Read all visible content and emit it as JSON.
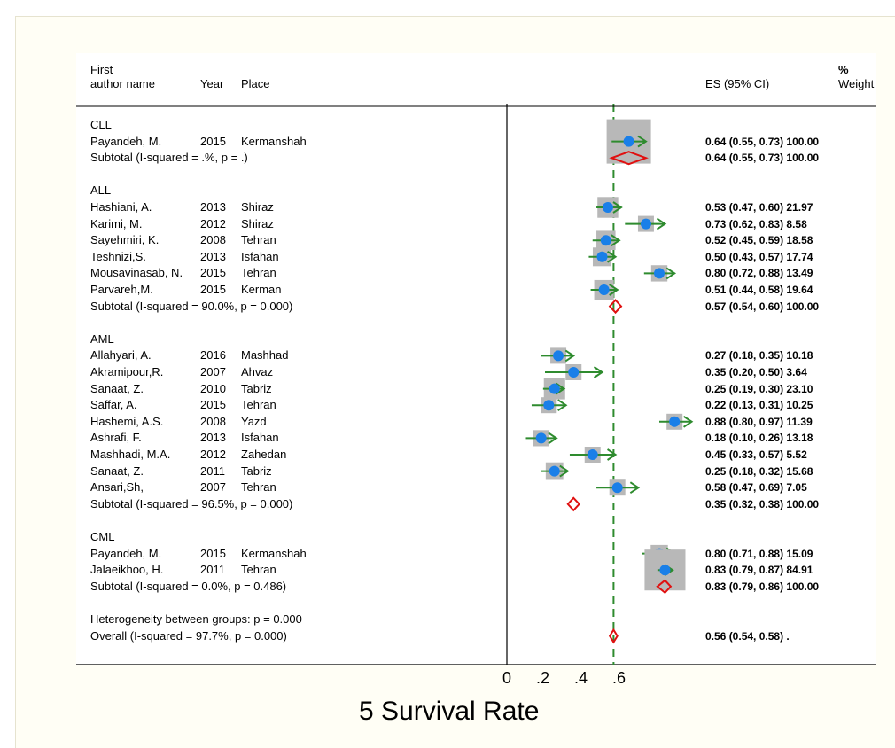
{
  "columns": {
    "author_line1": "First",
    "author_line2": "author name",
    "year": "Year",
    "place": "Place",
    "es": "ES (95% CI)",
    "weight_line1": "%",
    "weight_line2": "Weight"
  },
  "chart_data": {
    "type": "forest",
    "xlabel": "5 Survival Rate",
    "xticks": [
      "0",
      ".2",
      ".4",
      ".6"
    ],
    "xtick_values": [
      0,
      0.2,
      0.4,
      0.6
    ],
    "xlim": [
      0,
      1.0
    ],
    "overall_line": 0.56,
    "rows": [
      {
        "kind": "group",
        "label": "CLL"
      },
      {
        "kind": "study",
        "author": "Payandeh, M.",
        "year": "2015",
        "place": "Kermanshah",
        "es": 0.64,
        "lo": 0.55,
        "hi": 0.73,
        "weight": 100.0,
        "text": "0.64 (0.55, 0.73) 100.00"
      },
      {
        "kind": "subtotal",
        "label": "Subtotal  (I-squared = .%, p = .)",
        "es": 0.64,
        "lo": 0.55,
        "hi": 0.73,
        "text": "0.64 (0.55, 0.73) 100.00"
      },
      {
        "kind": "blank"
      },
      {
        "kind": "group",
        "label": "ALL"
      },
      {
        "kind": "study",
        "author": "Hashiani, A.",
        "year": "2013",
        "place": "Shiraz",
        "es": 0.53,
        "lo": 0.47,
        "hi": 0.6,
        "weight": 21.97,
        "text": "0.53 (0.47, 0.60) 21.97"
      },
      {
        "kind": "study",
        "author": "Karimi, M.",
        "year": "2012",
        "place": "Shiraz",
        "es": 0.73,
        "lo": 0.62,
        "hi": 0.83,
        "weight": 8.58,
        "text": "0.73 (0.62, 0.83) 8.58"
      },
      {
        "kind": "study",
        "author": "Sayehmiri, K.",
        "year": "2008",
        "place": "Tehran",
        "es": 0.52,
        "lo": 0.45,
        "hi": 0.59,
        "weight": 18.58,
        "text": "0.52 (0.45, 0.59) 18.58"
      },
      {
        "kind": "study",
        "author": "Teshnizi,S.",
        "year": "2013",
        "place": "Isfahan",
        "es": 0.5,
        "lo": 0.43,
        "hi": 0.57,
        "weight": 17.74,
        "text": "0.50 (0.43, 0.57) 17.74"
      },
      {
        "kind": "study",
        "author": "Mousavinasab, N.",
        "year": "2015",
        "place": "Tehran",
        "es": 0.8,
        "lo": 0.72,
        "hi": 0.88,
        "weight": 13.49,
        "text": "0.80 (0.72, 0.88) 13.49"
      },
      {
        "kind": "study",
        "author": "Parvareh,M.",
        "year": "2015",
        "place": "Kerman",
        "es": 0.51,
        "lo": 0.44,
        "hi": 0.58,
        "weight": 19.64,
        "text": "0.51 (0.44, 0.58) 19.64"
      },
      {
        "kind": "subtotal",
        "label": "Subtotal  (I-squared = 90.0%, p = 0.000)",
        "es": 0.57,
        "lo": 0.54,
        "hi": 0.6,
        "text": "0.57 (0.54, 0.60) 100.00"
      },
      {
        "kind": "blank"
      },
      {
        "kind": "group",
        "label": "AML"
      },
      {
        "kind": "study",
        "author": "Allahyari, A.",
        "year": "2016",
        "place": "Mashhad",
        "es": 0.27,
        "lo": 0.18,
        "hi": 0.35,
        "weight": 10.18,
        "text": "0.27 (0.18, 0.35) 10.18"
      },
      {
        "kind": "study",
        "author": "Akramipour,R.",
        "year": "2007",
        "place": "Ahvaz",
        "es": 0.35,
        "lo": 0.2,
        "hi": 0.5,
        "weight": 3.64,
        "text": "0.35 (0.20, 0.50) 3.64"
      },
      {
        "kind": "study",
        "author": "Sanaat, Z.",
        "year": "2010",
        "place": "Tabriz",
        "es": 0.25,
        "lo": 0.19,
        "hi": 0.3,
        "weight": 23.1,
        "text": "0.25 (0.19, 0.30) 23.10"
      },
      {
        "kind": "study",
        "author": "Saffar, A.",
        "year": "2015",
        "place": "Tehran",
        "es": 0.22,
        "lo": 0.13,
        "hi": 0.31,
        "weight": 10.25,
        "text": "0.22 (0.13, 0.31) 10.25"
      },
      {
        "kind": "study",
        "author": "Hashemi, A.S.",
        "year": "2008",
        "place": "Yazd",
        "es": 0.88,
        "lo": 0.8,
        "hi": 0.97,
        "weight": 11.39,
        "text": "0.88 (0.80, 0.97) 11.39"
      },
      {
        "kind": "study",
        "author": "Ashrafi, F.",
        "year": "2013",
        "place": "Isfahan",
        "es": 0.18,
        "lo": 0.1,
        "hi": 0.26,
        "weight": 13.18,
        "text": "0.18 (0.10, 0.26) 13.18"
      },
      {
        "kind": "study",
        "author": "Mashhadi, M.A.",
        "year": "2012",
        "place": "Zahedan",
        "es": 0.45,
        "lo": 0.33,
        "hi": 0.57,
        "weight": 5.52,
        "text": "0.45 (0.33, 0.57) 5.52"
      },
      {
        "kind": "study",
        "author": "Sanaat, Z.",
        "year": "2011",
        "place": "Tabriz",
        "es": 0.25,
        "lo": 0.18,
        "hi": 0.32,
        "weight": 15.68,
        "text": "0.25 (0.18, 0.32) 15.68"
      },
      {
        "kind": "study",
        "author": "Ansari,Sh,",
        "year": "2007",
        "place": "Tehran",
        "es": 0.58,
        "lo": 0.47,
        "hi": 0.69,
        "weight": 7.05,
        "text": "0.58 (0.47, 0.69) 7.05"
      },
      {
        "kind": "subtotal",
        "label": "Subtotal  (I-squared = 96.5%, p = 0.000)",
        "es": 0.35,
        "lo": 0.32,
        "hi": 0.38,
        "text": "0.35 (0.32, 0.38) 100.00"
      },
      {
        "kind": "blank"
      },
      {
        "kind": "group",
        "label": "CML"
      },
      {
        "kind": "study",
        "author": "Payandeh, M.",
        "year": "2015",
        "place": "Kermanshah",
        "es": 0.8,
        "lo": 0.71,
        "hi": 0.88,
        "weight": 15.09,
        "text": "0.80 (0.71, 0.88) 15.09"
      },
      {
        "kind": "study",
        "author": "Jalaeikhoo, H.",
        "year": "2011",
        "place": "Tehran",
        "es": 0.83,
        "lo": 0.79,
        "hi": 0.87,
        "weight": 84.91,
        "text": "0.83 (0.79, 0.87) 84.91"
      },
      {
        "kind": "subtotal",
        "label": "Subtotal  (I-squared = 0.0%, p = 0.486)",
        "es": 0.83,
        "lo": 0.79,
        "hi": 0.86,
        "text": "0.83 (0.79, 0.86) 100.00"
      },
      {
        "kind": "blank"
      },
      {
        "kind": "group",
        "label": "Heterogeneity between groups: p = 0.000"
      },
      {
        "kind": "overall",
        "label": "Overall  (I-squared = 97.7%, p = 0.000)",
        "es": 0.56,
        "lo": 0.54,
        "hi": 0.58,
        "text": "0.56 (0.54, 0.58) ."
      }
    ]
  },
  "colors": {
    "background": "#fffef5",
    "plot_bg": "#ffffff",
    "weight_box": "#b8b8b8",
    "point": "#1a7fe8",
    "ci_line": "#2e8b2e",
    "diamond": "#e01010",
    "overall_line": "#2e8b2e"
  }
}
